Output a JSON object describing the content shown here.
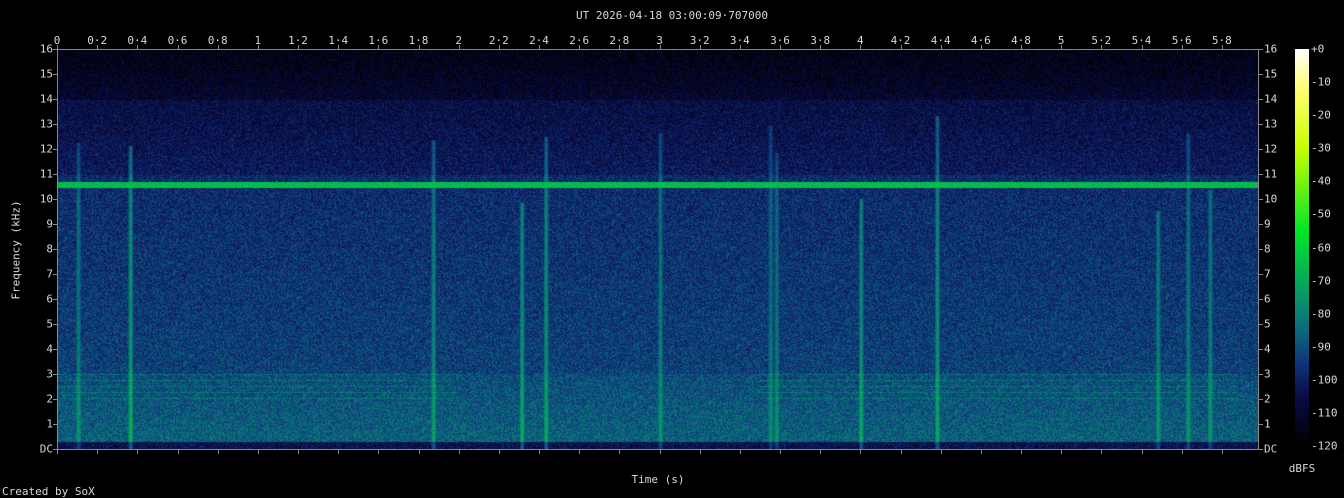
{
  "chart_data": {
    "type": "heatmap",
    "title": "UT 2026-04-18 03:00:09·707000",
    "xlabel": "Time (s)",
    "ylabel": "Frequency (kHz)",
    "xlim": [
      0,
      5.98
    ],
    "ylim": [
      0,
      16
    ],
    "x_ticks": [
      "0",
      "0·2",
      "0·4",
      "0·6",
      "0·8",
      "1",
      "1·2",
      "1·4",
      "1·6",
      "1·8",
      "2",
      "2·2",
      "2·4",
      "2·6",
      "2·8",
      "3",
      "3·2",
      "3·4",
      "3·6",
      "3·8",
      "4",
      "4·2",
      "4·4",
      "4·6",
      "4·8",
      "5",
      "5·2",
      "5·4",
      "5·6",
      "5·8"
    ],
    "y_ticks": [
      "DC",
      "1",
      "2",
      "3",
      "4",
      "5",
      "6",
      "7",
      "8",
      "9",
      "10",
      "11",
      "12",
      "13",
      "14",
      "15",
      "16"
    ],
    "colorbar": {
      "label": "dBFS",
      "range": [
        -120,
        0
      ],
      "ticks": [
        "+0",
        "-10",
        "-20",
        "-30",
        "-40",
        "-50",
        "-60",
        "-70",
        "-80",
        "-90",
        "-100",
        "-110",
        "-120"
      ],
      "colormap": [
        "#000000",
        "#0a0c48",
        "#10347a",
        "#0b6a7c",
        "#08966a",
        "#00e628",
        "#c8ff00",
        "#ffff70",
        "#ffffff"
      ]
    },
    "features": {
      "tone_khz": 10.6,
      "tone_dbfs": -65,
      "transients_s": [
        0.1,
        0.36,
        1.87,
        2.31,
        2.43,
        3.0,
        3.55,
        3.58,
        4.0,
        4.38,
        5.48,
        5.63,
        5.74
      ]
    }
  },
  "footer": {
    "credit": "Created by SoX"
  }
}
